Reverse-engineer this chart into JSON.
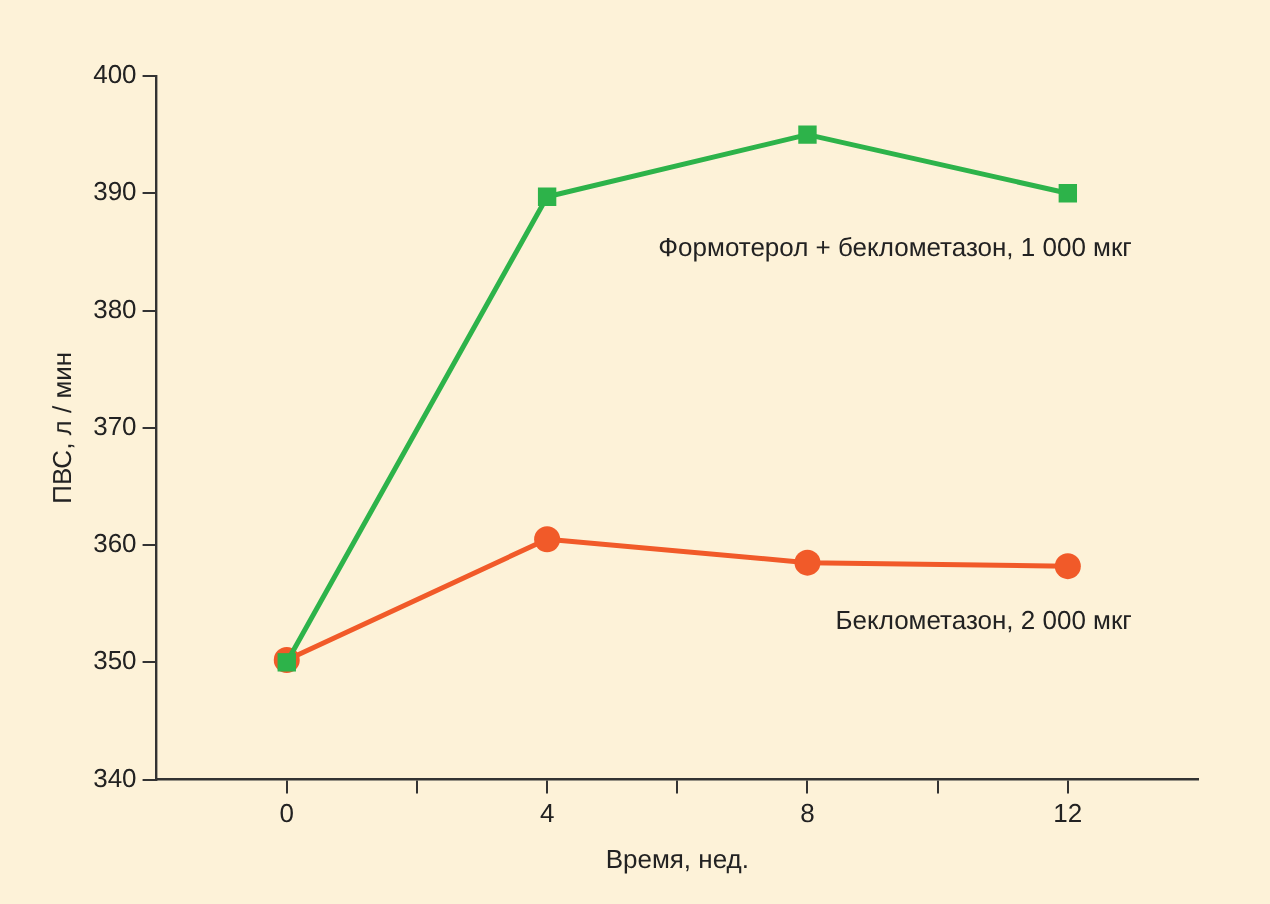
{
  "chart_data": {
    "type": "line",
    "xlabel": "Время, нед.",
    "ylabel": "ПВС, л / мин",
    "x": [
      0,
      4,
      8,
      12
    ],
    "xlim": [
      -2,
      14
    ],
    "xticks": [
      0,
      {
        "value": 2,
        "label": null
      },
      4,
      {
        "value": 6,
        "label": null
      },
      8,
      {
        "value": 10,
        "label": null
      },
      12
    ],
    "ylim": [
      340,
      400
    ],
    "yticks": [
      340,
      350,
      360,
      370,
      380,
      390,
      400
    ],
    "grid": false,
    "legend": false,
    "series": [
      {
        "name": "Формотерол + беклометазон, 1 000 мкг",
        "color": "#2db34a",
        "marker": "square",
        "values": [
          350,
          389.7,
          395,
          390
        ]
      },
      {
        "name": "Беклометазон, 2 000 мкг",
        "color": "#f15a29",
        "marker": "circle",
        "values": [
          350.2,
          360.5,
          358.5,
          358.2
        ]
      }
    ]
  }
}
